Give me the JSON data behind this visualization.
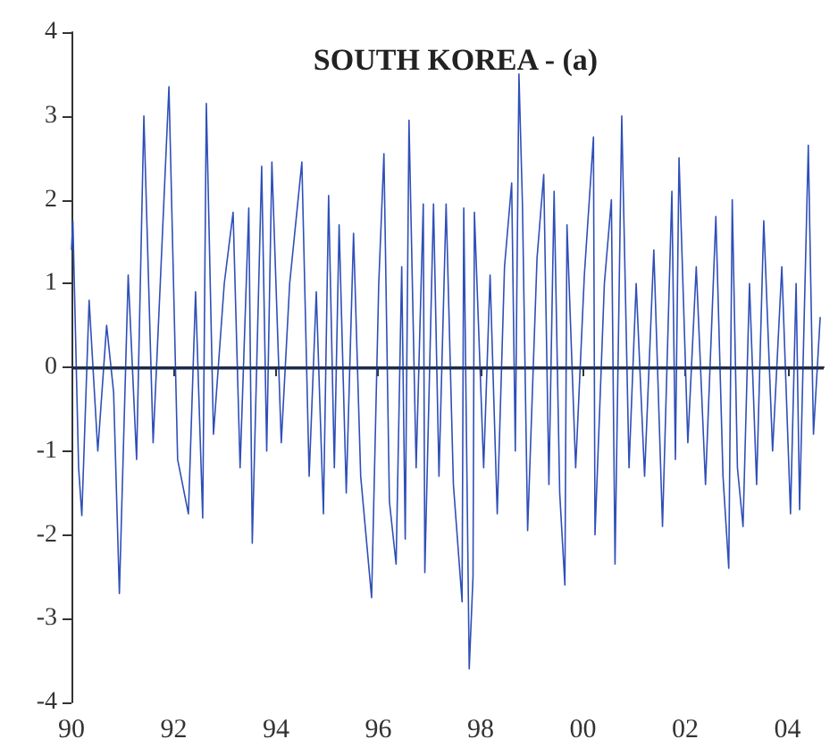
{
  "chart_data": {
    "type": "line",
    "title": "SOUTH KOREA - (a)",
    "color": "#2f4fb8",
    "x": [
      "1990-01-01",
      "1990-01-11",
      "1990-02-21",
      "1990-03-16",
      "1990-05-07",
      "1990-07-08",
      "1990-09-09",
      "1990-10-29",
      "1990-12-09",
      "1991-02-10",
      "1991-04-11",
      "1991-06-02",
      "1991-08-07",
      "1991-09-27",
      "1991-11-28",
      "1992-01-29",
      "1992-04-15",
      "1992-06-05",
      "1992-07-26",
      "1992-08-21",
      "1992-10-11",
      "1992-12-27",
      "1993-02-28",
      "1993-04-19",
      "1993-06-20",
      "1993-07-15",
      "1993-09-20",
      "1993-10-26",
      "1993-12-02",
      "1994-02-07",
      "1994-04-08",
      "1994-07-04",
      "1994-08-25",
      "1994-10-15",
      "1994-12-05",
      "1995-01-11",
      "1995-02-21",
      "1995-03-27",
      "1995-05-17",
      "1995-07-08",
      "1995-08-28",
      "1995-11-14",
      "1996-01-04",
      "1996-02-10",
      "1996-03-20",
      "1996-05-07",
      "1996-06-16",
      "1996-07-11",
      "1996-08-07",
      "1996-09-27",
      "1996-11-17",
      "1996-11-28",
      "1997-01-29",
      "1997-03-09",
      "1997-04-29",
      "1997-06-20",
      "1997-08-21",
      "1997-09-02",
      "1997-10-11",
      "1997-11-07",
      "1997-11-17",
      "1998-01-22",
      "1998-03-09",
      "1998-04-29",
      "1998-06-20",
      "1998-08-10",
      "1998-09-05",
      "1998-10-01",
      "1998-10-26",
      "1998-12-02",
      "1999-02-07",
      "1999-03-27",
      "1999-05-03",
      "1999-06-09",
      "1999-07-19",
      "1999-08-25",
      "1999-09-09",
      "1999-11-10",
      "2000-01-11",
      "2000-03-16",
      "2000-03-27",
      "2000-06-02",
      "2000-07-22",
      "2000-08-17",
      "2000-10-04",
      "2000-11-25",
      "2001-01-15",
      "2001-03-16",
      "2001-05-21",
      "2001-07-22",
      "2001-09-27",
      "2001-10-22",
      "2001-11-17",
      "2002-01-19",
      "2002-03-20",
      "2002-05-25",
      "2002-08-07",
      "2002-09-27",
      "2002-11-07",
      "2002-12-02",
      "2003-01-08",
      "2003-02-17",
      "2003-04-04",
      "2003-05-25",
      "2003-07-15",
      "2003-09-16",
      "2003-11-21",
      "2004-01-22",
      "2004-03-02",
      "2004-03-27",
      "2004-05-28",
      "2004-07-04",
      "2004-08-21"
    ],
    "values": [
      1.4,
      1.75,
      -1.2,
      -1.77,
      0.8,
      -1.0,
      0.5,
      -0.3,
      -2.7,
      1.1,
      -1.1,
      3.0,
      -0.9,
      1.0,
      3.35,
      -1.1,
      -1.75,
      0.9,
      -1.8,
      3.15,
      -0.8,
      1.0,
      1.85,
      -1.2,
      1.9,
      -2.1,
      2.4,
      -1.0,
      2.45,
      -0.9,
      1.0,
      2.45,
      -1.3,
      0.9,
      -1.75,
      2.05,
      -1.2,
      1.7,
      -1.5,
      1.6,
      -1.3,
      -2.75,
      1.0,
      2.55,
      -1.6,
      -2.35,
      1.2,
      -2.05,
      2.95,
      -1.2,
      1.95,
      -2.45,
      1.95,
      -1.3,
      1.95,
      -1.4,
      -2.8,
      1.9,
      -3.6,
      -2.5,
      1.85,
      -1.2,
      1.1,
      -1.75,
      1.2,
      2.2,
      -1.0,
      3.5,
      1.95,
      -1.95,
      1.3,
      2.3,
      -1.4,
      2.1,
      -1.5,
      -2.6,
      1.7,
      -1.2,
      1.1,
      2.75,
      -2.0,
      1.0,
      2.0,
      -2.35,
      3.0,
      -1.2,
      1.0,
      -1.3,
      1.4,
      -1.9,
      2.1,
      -1.1,
      2.5,
      -0.9,
      1.2,
      -1.4,
      1.8,
      -1.3,
      -2.4,
      2.0,
      -1.2,
      -1.9,
      1.0,
      -1.4,
      1.75,
      -1.0,
      1.2,
      -1.75,
      1.0,
      -1.7,
      2.65,
      -0.8,
      0.6
    ],
    "xlim": [
      "1990-01-01",
      "2004-09-15"
    ],
    "xticks": [
      {
        "value": "1990",
        "label": "90"
      },
      {
        "value": "1992",
        "label": "92"
      },
      {
        "value": "1994",
        "label": "94"
      },
      {
        "value": "1996",
        "label": "96"
      },
      {
        "value": "1998",
        "label": "98"
      },
      {
        "value": "2000",
        "label": "00"
      },
      {
        "value": "2002",
        "label": "02"
      },
      {
        "value": "2004",
        "label": "04"
      }
    ],
    "ylim": [
      -4,
      4
    ],
    "yticks": [
      -4,
      -3,
      -2,
      -1,
      0,
      1,
      2,
      3,
      4
    ],
    "ref_lines": [
      {
        "axis": "y",
        "value": 0,
        "color": "#1a2a50"
      }
    ],
    "grid": false,
    "marker": "none",
    "line_style": "solid"
  }
}
